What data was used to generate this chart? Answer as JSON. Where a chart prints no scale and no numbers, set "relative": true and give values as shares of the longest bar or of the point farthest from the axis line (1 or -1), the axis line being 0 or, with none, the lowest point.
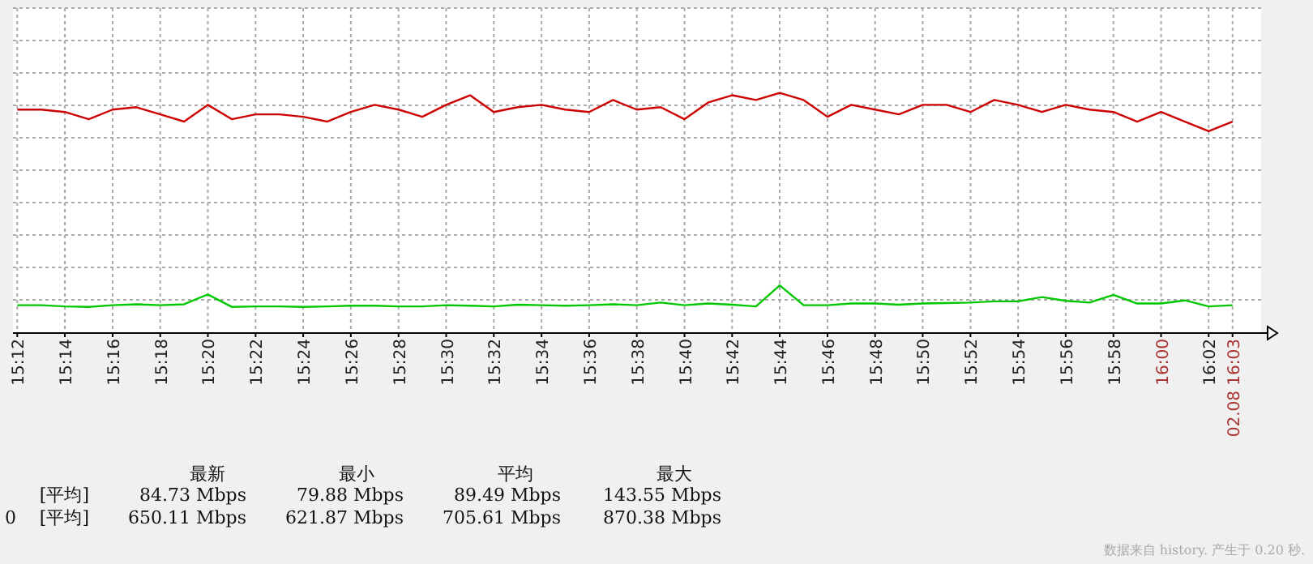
{
  "chart_data": {
    "type": "line",
    "relative": true,
    "grid": true,
    "line_style": "solid",
    "x": [
      15.2,
      15.2167,
      15.2333,
      15.25,
      15.2667,
      15.2833,
      15.3,
      15.3167,
      15.3333,
      15.35,
      15.3667,
      15.3833,
      15.4,
      15.4167,
      15.4333,
      15.45,
      15.4667,
      15.4833,
      15.5,
      15.5167,
      15.5333,
      15.55,
      15.5667,
      15.5833,
      15.6,
      15.6167,
      15.6333,
      15.65,
      15.6667,
      15.6833,
      15.7,
      15.7167,
      15.7333,
      15.75,
      15.7667,
      15.7833,
      15.8,
      15.8167,
      15.8333,
      15.85,
      15.8667,
      15.8833,
      15.9,
      15.9167,
      15.9333,
      15.95,
      15.9667,
      15.9833,
      16.0,
      16.0167,
      16.0333,
      16.05
    ],
    "xlim": [
      15.197,
      16.07
    ],
    "xticks": [
      {
        "value": 15.2,
        "label": "15:12"
      },
      {
        "value": 15.2333,
        "label": "15:14"
      },
      {
        "value": 15.2667,
        "label": "15:16"
      },
      {
        "value": 15.3,
        "label": "15:18"
      },
      {
        "value": 15.3333,
        "label": "15:20"
      },
      {
        "value": 15.3667,
        "label": "15:22"
      },
      {
        "value": 15.4,
        "label": "15:24"
      },
      {
        "value": 15.4333,
        "label": "15:26"
      },
      {
        "value": 15.4667,
        "label": "15:28"
      },
      {
        "value": 15.5,
        "label": "15:30"
      },
      {
        "value": 15.5333,
        "label": "15:32"
      },
      {
        "value": 15.5667,
        "label": "15:34"
      },
      {
        "value": 15.6,
        "label": "15:36"
      },
      {
        "value": 15.6333,
        "label": "15:38"
      },
      {
        "value": 15.6667,
        "label": "15:40"
      },
      {
        "value": 15.7,
        "label": "15:42"
      },
      {
        "value": 15.7333,
        "label": "15:44"
      },
      {
        "value": 15.7667,
        "label": "15:46"
      },
      {
        "value": 15.8,
        "label": "15:48"
      },
      {
        "value": 15.8333,
        "label": "15:50"
      },
      {
        "value": 15.8667,
        "label": "15:52"
      },
      {
        "value": 15.9,
        "label": "15:54"
      },
      {
        "value": 15.9333,
        "label": "15:56"
      },
      {
        "value": 15.9667,
        "label": "15:58"
      },
      {
        "value": 16.0,
        "label": "16:00"
      },
      {
        "value": 16.0333,
        "label": "16:02"
      },
      {
        "value": 16.05,
        "label": "02.08 16:03"
      }
    ],
    "series": [
      {
        "color": "#cc0000",
        "values": [
          0.93,
          0.93,
          0.92,
          0.89,
          0.93,
          0.94,
          0.91,
          0.88,
          0.95,
          0.89,
          0.91,
          0.91,
          0.9,
          0.88,
          0.92,
          0.95,
          0.93,
          0.9,
          0.95,
          0.99,
          0.92,
          0.94,
          0.95,
          0.93,
          0.92,
          0.97,
          0.93,
          0.94,
          0.89,
          0.96,
          0.99,
          0.97,
          1.0,
          0.97,
          0.9,
          0.95,
          0.93,
          0.91,
          0.95,
          0.95,
          0.92,
          0.97,
          0.95,
          0.92,
          0.95,
          0.93,
          0.92,
          0.88,
          0.92,
          0.88,
          0.84,
          0.88
        ]
      },
      {
        "color": "#00c800",
        "values": [
          0.113,
          0.113,
          0.108,
          0.106,
          0.113,
          0.117,
          0.113,
          0.117,
          0.158,
          0.106,
          0.108,
          0.108,
          0.106,
          0.108,
          0.111,
          0.111,
          0.108,
          0.108,
          0.113,
          0.111,
          0.108,
          0.115,
          0.113,
          0.111,
          0.113,
          0.117,
          0.113,
          0.124,
          0.113,
          0.12,
          0.115,
          0.108,
          0.196,
          0.113,
          0.113,
          0.12,
          0.12,
          0.115,
          0.12,
          0.122,
          0.124,
          0.129,
          0.129,
          0.147,
          0.131,
          0.124,
          0.156,
          0.12,
          0.12,
          0.133,
          0.108,
          0.113
        ]
      }
    ],
    "annotations": [
      "最新",
      "最小",
      "平均",
      "最大",
      "[平均]",
      "84.73 Mbps",
      "79.88 Mbps",
      "89.49 Mbps",
      "143.55 Mbps",
      "0",
      "[平均]",
      "650.11 Mbps",
      "621.87 Mbps",
      "705.61 Mbps",
      "870.38 Mbps",
      "数据来自 history. 产生于 0.20 秒."
    ]
  }
}
